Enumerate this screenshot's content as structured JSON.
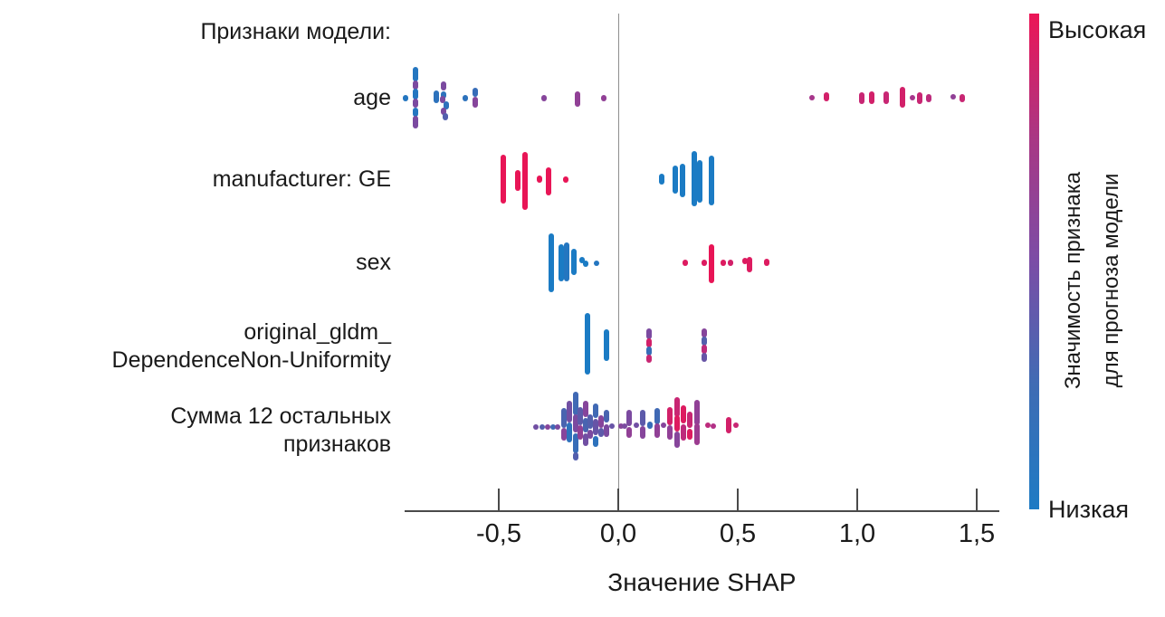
{
  "chart_data": {
    "type": "scatter",
    "subtype": "shap-beeswarm",
    "title": "Признаки модели:",
    "xlabel": "Значение SHAP",
    "ylabel": "",
    "xlim": [
      -0.894,
      1.594
    ],
    "grid": "zero-line-only",
    "xticks": [
      {
        "value": -0.5,
        "label": "-0,5"
      },
      {
        "value": 0.0,
        "label": "0,0"
      },
      {
        "value": 0.5,
        "label": "0,5"
      },
      {
        "value": 1.0,
        "label": "1,0"
      },
      {
        "value": 1.5,
        "label": "1,5"
      }
    ],
    "colormap": [
      "#1b7bc4",
      "#4964b0",
      "#7b4aa0",
      "#b23186",
      "#e81556"
    ],
    "colorbar": {
      "high_label": "Высокая",
      "low_label": "Низкая",
      "axis_label_lines": [
        "Значимость признака",
        "для прогноза модели"
      ],
      "gradient_top_to_bottom": [
        "#ec1556",
        "#a93784",
        "#7b4da6",
        "#3f6cb4",
        "#1e7bc4"
      ],
      "legend_position": "right"
    },
    "point_note": "points are [shap_value, y_jitter_px, cluster_height_px, feature_value_0low_1high]",
    "rows": [
      {
        "label_lines": [
          "age"
        ],
        "points": [
          [
            -0.89,
            0,
            7,
            0.05
          ],
          [
            -0.85,
            -26,
            16,
            0.05
          ],
          [
            -0.85,
            -14,
            10,
            0.5
          ],
          [
            -0.85,
            -4,
            12,
            0.05
          ],
          [
            -0.85,
            6,
            10,
            0.5
          ],
          [
            -0.85,
            16,
            10,
            0.05
          ],
          [
            -0.85,
            27,
            14,
            0.5
          ],
          [
            -0.76,
            -1,
            14,
            0.1
          ],
          [
            -0.73,
            -13,
            10,
            0.5
          ],
          [
            -0.73,
            -3,
            8,
            0.1
          ],
          [
            -0.735,
            2,
            8,
            0.5
          ],
          [
            -0.72,
            8,
            9,
            0.1
          ],
          [
            -0.73,
            15,
            8,
            0.5
          ],
          [
            -0.725,
            21,
            8,
            0.3
          ],
          [
            -0.64,
            0,
            7,
            0.1
          ],
          [
            -0.6,
            -6,
            10,
            0.15
          ],
          [
            -0.6,
            5,
            12,
            0.55
          ],
          [
            -0.31,
            0,
            7,
            0.55
          ],
          [
            -0.17,
            1,
            17,
            0.6
          ],
          [
            -0.06,
            0,
            7,
            0.6
          ],
          [
            0.81,
            0,
            6,
            0.7
          ],
          [
            0.87,
            -1,
            10,
            0.9
          ],
          [
            1.02,
            0,
            13,
            0.85
          ],
          [
            1.06,
            0,
            14,
            0.9
          ],
          [
            1.12,
            0,
            14,
            0.85
          ],
          [
            1.19,
            -1,
            23,
            0.9
          ],
          [
            1.23,
            0,
            6,
            0.7
          ],
          [
            1.26,
            0,
            13,
            0.85
          ],
          [
            1.3,
            0,
            9,
            0.8
          ],
          [
            1.4,
            -1,
            6,
            0.6
          ],
          [
            1.44,
            0,
            9,
            0.85
          ]
        ]
      },
      {
        "label_lines": [
          "manufacturer: GE"
        ],
        "points": [
          [
            -0.48,
            0,
            54,
            1
          ],
          [
            -0.42,
            1,
            23,
            1
          ],
          [
            -0.39,
            2,
            64,
            1
          ],
          [
            -0.33,
            0,
            8,
            1
          ],
          [
            -0.29,
            2,
            31,
            1
          ],
          [
            -0.22,
            0,
            7,
            1
          ],
          [
            0.18,
            0,
            12,
            0
          ],
          [
            0.24,
            0,
            31,
            0
          ],
          [
            0.27,
            1,
            37,
            0
          ],
          [
            0.32,
            -1,
            61,
            0
          ],
          [
            0.34,
            2,
            47,
            0
          ],
          [
            0.39,
            1,
            55,
            0
          ]
        ]
      },
      {
        "label_lines": [
          "sex"
        ],
        "points": [
          [
            -0.28,
            0,
            65,
            0
          ],
          [
            -0.24,
            0,
            41,
            0
          ],
          [
            -0.215,
            -1,
            43,
            0.05
          ],
          [
            -0.185,
            -1,
            29,
            0
          ],
          [
            -0.15,
            -3,
            7,
            0
          ],
          [
            -0.135,
            1,
            7,
            0
          ],
          [
            -0.09,
            1,
            6,
            0.05
          ],
          [
            0.28,
            0,
            7,
            0.95
          ],
          [
            0.36,
            0,
            7,
            0.95
          ],
          [
            0.39,
            1,
            43,
            1
          ],
          [
            0.44,
            0,
            7,
            0.95
          ],
          [
            0.47,
            0,
            7,
            0.9
          ],
          [
            0.53,
            -2,
            7,
            0.95
          ],
          [
            0.55,
            2,
            17,
            0.95
          ],
          [
            0.62,
            0,
            8,
            0.95
          ]
        ]
      },
      {
        "label_lines": [
          "original_gldm_",
          "DependenceNon-Uniformity"
        ],
        "points": [
          [
            -0.13,
            -3,
            68,
            0
          ],
          [
            -0.05,
            -2,
            35,
            0
          ],
          [
            0.13,
            -14,
            12,
            0.5
          ],
          [
            0.13,
            -4,
            10,
            0.9
          ],
          [
            0.13,
            5,
            10,
            0.15
          ],
          [
            0.13,
            13,
            9,
            0.85
          ],
          [
            0.36,
            -15,
            10,
            0.55
          ],
          [
            0.36,
            -6,
            10,
            0.3
          ],
          [
            0.36,
            3,
            10,
            0.8
          ],
          [
            0.36,
            12,
            10,
            0.4
          ]
        ]
      },
      {
        "label_lines": [
          "Сумма 12 остальных",
          "признаков"
        ],
        "points": [
          [
            -0.345,
            2,
            6,
            0.45
          ],
          [
            -0.318,
            2,
            6,
            0.3
          ],
          [
            -0.295,
            2,
            6,
            0.55
          ],
          [
            -0.273,
            2,
            6,
            0.2
          ],
          [
            -0.254,
            2,
            6,
            0.5
          ],
          [
            -0.227,
            -8,
            22,
            0.25
          ],
          [
            -0.227,
            10,
            14,
            0.55
          ],
          [
            -0.205,
            -15,
            24,
            0.45
          ],
          [
            -0.205,
            8,
            22,
            0.1
          ],
          [
            -0.178,
            -24,
            26,
            0.2
          ],
          [
            -0.178,
            -2,
            20,
            0.5
          ],
          [
            -0.178,
            20,
            22,
            0.15
          ],
          [
            -0.178,
            34,
            9,
            0.3
          ],
          [
            -0.159,
            -10,
            20,
            0.35
          ],
          [
            -0.159,
            8,
            16,
            0.6
          ],
          [
            -0.136,
            -18,
            18,
            0.55
          ],
          [
            -0.136,
            0,
            16,
            0.25
          ],
          [
            -0.136,
            16,
            14,
            0.45
          ],
          [
            -0.117,
            -4,
            16,
            0.3
          ],
          [
            -0.117,
            10,
            10,
            0.5
          ],
          [
            -0.095,
            -16,
            16,
            0.2
          ],
          [
            -0.095,
            2,
            18,
            0.4
          ],
          [
            -0.095,
            18,
            12,
            0.1
          ],
          [
            -0.072,
            -4,
            14,
            0.55
          ],
          [
            -0.072,
            8,
            10,
            0.35
          ],
          [
            -0.049,
            -10,
            14,
            0.25
          ],
          [
            -0.049,
            6,
            14,
            0.5
          ],
          [
            -0.027,
            1,
            6,
            0.4
          ],
          [
            0.011,
            1,
            6,
            0.55
          ],
          [
            0.027,
            1,
            6,
            0.5
          ],
          [
            0.045,
            -8,
            18,
            0.5
          ],
          [
            0.045,
            8,
            12,
            0.6
          ],
          [
            0.076,
            0,
            6,
            0.45
          ],
          [
            0.102,
            -8,
            18,
            0.35
          ],
          [
            0.102,
            8,
            14,
            0.55
          ],
          [
            0.133,
            0,
            8,
            0.15
          ],
          [
            0.163,
            -10,
            18,
            0.2
          ],
          [
            0.163,
            6,
            16,
            0.6
          ],
          [
            0.189,
            0,
            6,
            0.55
          ],
          [
            0.216,
            -10,
            20,
            0.9
          ],
          [
            0.216,
            8,
            16,
            0.6
          ],
          [
            0.246,
            -20,
            22,
            0.85
          ],
          [
            0.246,
            -2,
            18,
            0.95
          ],
          [
            0.246,
            16,
            18,
            0.55
          ],
          [
            0.273,
            -12,
            20,
            0.95
          ],
          [
            0.273,
            8,
            18,
            0.8
          ],
          [
            0.299,
            -6,
            18,
            0.85
          ],
          [
            0.299,
            10,
            12,
            0.95
          ],
          [
            0.33,
            -14,
            28,
            0.6
          ],
          [
            0.33,
            10,
            24,
            0.65
          ],
          [
            0.375,
            0,
            6,
            0.8
          ],
          [
            0.398,
            1,
            6,
            0.75
          ],
          [
            0.462,
            0,
            18,
            0.9
          ],
          [
            0.492,
            0,
            6,
            0.85
          ]
        ]
      }
    ]
  }
}
